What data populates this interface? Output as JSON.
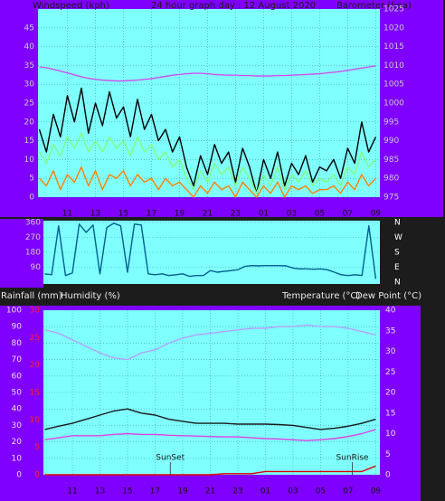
{
  "chart_data": [
    {
      "type": "line",
      "title": "24 hour graph day : 12 August 2020",
      "y_label": "Windspeed (kph)",
      "y2_label": "Barometer (hpa)",
      "x": [
        9,
        9.5,
        10,
        10.5,
        11,
        11.5,
        12,
        12.5,
        13,
        13.5,
        14,
        14.5,
        15,
        15.5,
        16,
        16.5,
        17,
        17.5,
        18,
        18.5,
        19,
        19.5,
        20,
        20.5,
        21,
        21.5,
        22,
        22.5,
        23,
        23.5,
        24,
        24.5,
        25,
        25.5,
        26,
        26.5,
        27,
        27.5,
        28,
        28.5,
        29,
        29.5,
        30,
        30.5,
        31,
        31.5,
        32,
        32.5,
        33
      ],
      "xlim": [
        8.9,
        33.3
      ],
      "xticks": [
        11,
        13,
        15,
        17,
        19,
        21,
        23,
        {
          "value": 25,
          "label": "01"
        },
        {
          "value": 27,
          "label": "03"
        },
        {
          "value": 29,
          "label": "05"
        },
        {
          "value": 31,
          "label": "07"
        },
        {
          "value": 33,
          "label": "09"
        }
      ],
      "ylim": [
        0,
        50
      ],
      "yticks": [
        0,
        5,
        10,
        15,
        20,
        25,
        30,
        35,
        40,
        45
      ],
      "y2lim": [
        975,
        1025
      ],
      "y2ticks": [
        975,
        980,
        985,
        990,
        995,
        1000,
        1005,
        1010,
        1015,
        1020,
        1025
      ],
      "grid": true,
      "series": [
        {
          "color": "#000000",
          "values": [
            18,
            12,
            22,
            16,
            27,
            20,
            29,
            17,
            25,
            19,
            28,
            21,
            24,
            16,
            26,
            18,
            22,
            15,
            18,
            12,
            16,
            8,
            3,
            11,
            6,
            14,
            9,
            12,
            4,
            13,
            8,
            1,
            10,
            5,
            12,
            3,
            9,
            6,
            11,
            4,
            8,
            7,
            10,
            5,
            13,
            9,
            20,
            12,
            16
          ]
        },
        {
          "color": "#80ff80",
          "values": [
            12,
            9,
            14,
            11,
            16,
            13,
            17,
            12,
            15,
            12,
            16,
            13,
            15,
            11,
            16,
            12,
            14,
            10,
            12,
            8,
            10,
            5,
            2,
            7,
            4,
            9,
            6,
            8,
            3,
            8,
            5,
            1,
            6,
            3,
            8,
            2,
            6,
            4,
            7,
            3,
            5,
            4,
            6,
            3,
            8,
            6,
            12,
            8,
            10
          ]
        },
        {
          "color": "#ff8000",
          "values": [
            5,
            3,
            7,
            2,
            6,
            4,
            8,
            3,
            7,
            2,
            6,
            5,
            7,
            3,
            6,
            4,
            5,
            2,
            5,
            3,
            4,
            2,
            0,
            3,
            1,
            4,
            2,
            3,
            0,
            4,
            2,
            0,
            3,
            1,
            4,
            0,
            3,
            2,
            3,
            1,
            2,
            2,
            3,
            1,
            4,
            2,
            6,
            3,
            5
          ]
        },
        {
          "color": "#d050ee",
          "axis": "y2",
          "values": [
            1009.6,
            1009.4,
            1009.0,
            1008.5,
            1008.0,
            1007.5,
            1007.0,
            1006.6,
            1006.3,
            1006.1,
            1006.0,
            1005.9,
            1005.9,
            1006.0,
            1006.1,
            1006.3,
            1006.5,
            1006.8,
            1007.1,
            1007.4,
            1007.6,
            1007.8,
            1007.9,
            1007.9,
            1007.8,
            1007.6,
            1007.5,
            1007.4,
            1007.4,
            1007.3,
            1007.3,
            1007.2,
            1007.2,
            1007.2,
            1007.3,
            1007.3,
            1007.4,
            1007.5,
            1007.6,
            1007.7,
            1007.8,
            1008.0,
            1008.2,
            1008.4,
            1008.7,
            1009.0,
            1009.3,
            1009.6,
            1009.9
          ]
        }
      ]
    },
    {
      "type": "line",
      "x": [
        9,
        9.5,
        10,
        10.5,
        11,
        11.5,
        12,
        12.5,
        13,
        13.5,
        14,
        14.5,
        15,
        15.5,
        16,
        16.5,
        17,
        17.5,
        18,
        18.5,
        19,
        19.5,
        20,
        20.5,
        21,
        21.5,
        22,
        22.5,
        23,
        23.5,
        24,
        24.5,
        25,
        25.5,
        26,
        26.5,
        27,
        27.5,
        28,
        28.5,
        29,
        29.5,
        30,
        30.5,
        31,
        31.5,
        32,
        32.5,
        33
      ],
      "xlim": [
        8.9,
        33.3
      ],
      "ylim": [
        0,
        360
      ],
      "yticks": [
        90,
        180,
        270,
        360
      ],
      "y2lim": [
        0,
        360
      ],
      "y2ticks": [
        {
          "value": 360,
          "label": "N"
        },
        {
          "value": 270,
          "label": "W"
        },
        {
          "value": 180,
          "label": "S"
        },
        {
          "value": 90,
          "label": "E"
        },
        {
          "value": 0,
          "label": "N"
        }
      ],
      "grid": true,
      "series": [
        {
          "color": "#005f8f",
          "values": [
            50,
            45,
            340,
            40,
            55,
            350,
            300,
            345,
            50,
            330,
            355,
            340,
            60,
            350,
            345,
            50,
            45,
            50,
            40,
            45,
            50,
            35,
            40,
            40,
            70,
            60,
            65,
            70,
            75,
            95,
            100,
            98,
            100,
            100,
            100,
            98,
            85,
            80,
            80,
            78,
            80,
            75,
            60,
            45,
            40,
            45,
            40,
            340,
            20
          ]
        }
      ]
    },
    {
      "type": "line",
      "y_label": "Humidity (%)",
      "y3_label": "Rainfall (mm)",
      "y2_labels": [
        "Temperature (°C)",
        "Dew Point (°C)"
      ],
      "x": [
        9,
        10,
        11,
        12,
        13,
        14,
        15,
        16,
        17,
        18,
        19,
        20,
        21,
        22,
        23,
        24,
        25,
        26,
        27,
        28,
        29,
        30,
        31,
        32,
        33
      ],
      "xlim": [
        8.9,
        33.3
      ],
      "xticks": [
        11,
        13,
        15,
        17,
        19,
        21,
        23,
        {
          "value": 25,
          "label": "01"
        },
        {
          "value": 27,
          "label": "03"
        },
        {
          "value": 29,
          "label": "05"
        },
        {
          "value": 31,
          "label": "07"
        },
        {
          "value": 33,
          "label": "09"
        }
      ],
      "ylim": [
        0,
        100
      ],
      "yticks": [
        0,
        10,
        20,
        30,
        40,
        50,
        60,
        70,
        80,
        90,
        100
      ],
      "y2lim": [
        0,
        40
      ],
      "y2ticks": [
        0,
        5,
        10,
        15,
        20,
        25,
        30,
        35,
        40
      ],
      "y3lim": [
        0,
        30
      ],
      "y3ticks": [
        0,
        5,
        10,
        15,
        20,
        25,
        30
      ],
      "grid": true,
      "annotations": [
        {
          "text": "SunSet",
          "x": 18.1
        },
        {
          "text": "SunRise",
          "x": 31.3
        }
      ],
      "series": [
        {
          "color": "#b4a0ff",
          "values": [
            88,
            86,
            82,
            78,
            74,
            71,
            70,
            74,
            76,
            80,
            83,
            85,
            86,
            87,
            88,
            89,
            89,
            90,
            90,
            91,
            90,
            90,
            89,
            87,
            85
          ]
        },
        {
          "color": "#1a1a1a",
          "axis": "y2",
          "values": [
            11,
            11.8,
            12.5,
            13.5,
            14.5,
            15.5,
            16,
            15,
            14.5,
            13.5,
            13,
            12.5,
            12.5,
            12.5,
            12.3,
            12.3,
            12.3,
            12.2,
            12,
            11.5,
            11,
            11.3,
            11.8,
            12.5,
            13.5
          ]
        },
        {
          "color": "#e040e0",
          "axis": "y2",
          "values": [
            8.5,
            9,
            9.5,
            9.5,
            9.5,
            9.8,
            10,
            9.8,
            9.8,
            9.6,
            9.5,
            9.4,
            9.3,
            9.2,
            9.2,
            9,
            8.8,
            8.7,
            8.5,
            8.3,
            8.5,
            8.8,
            9.3,
            10,
            11
          ]
        },
        {
          "color": "#e00000",
          "axis": "y3",
          "values": [
            0,
            0,
            0,
            0,
            0,
            0,
            0,
            0,
            0,
            0,
            0,
            0,
            0,
            0.2,
            0.2,
            0.2,
            0.6,
            0.6,
            0.6,
            0.6,
            0.6,
            0.6,
            0.6,
            0.6,
            1.6
          ]
        }
      ]
    }
  ]
}
